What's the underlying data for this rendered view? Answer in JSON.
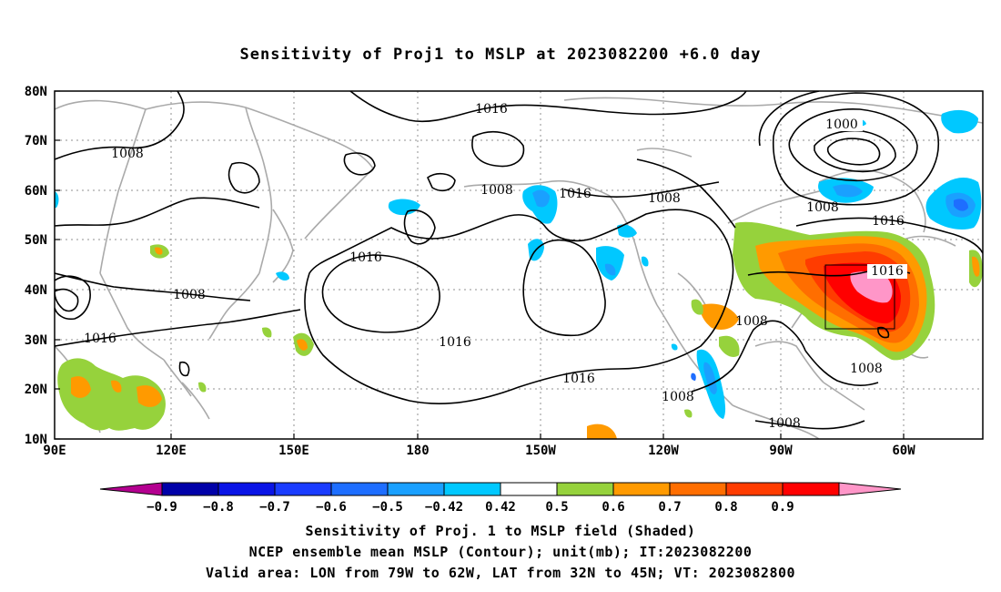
{
  "title": "Sensitivity of Proj1 to MSLP at 2023082200 +6.0 day",
  "map": {
    "lat_ticks": [
      "80N",
      "70N",
      "60N",
      "50N",
      "40N",
      "30N",
      "20N",
      "10N"
    ],
    "lon_ticks": [
      "90E",
      "120E",
      "150E",
      "180",
      "150W",
      "120W",
      "90W",
      "60W"
    ],
    "contour_labels": [
      {
        "text": "1016"
      },
      {
        "text": "1008"
      },
      {
        "text": "1000"
      },
      {
        "text": "1008"
      },
      {
        "text": "1016"
      },
      {
        "text": "1008"
      },
      {
        "text": "1016"
      },
      {
        "text": "1016"
      },
      {
        "text": "1008"
      },
      {
        "text": "1016"
      },
      {
        "text": "1016"
      },
      {
        "text": "1008"
      },
      {
        "text": "1016"
      },
      {
        "text": "1008"
      },
      {
        "text": "1008"
      },
      {
        "text": "1016"
      },
      {
        "text": "1008"
      },
      {
        "text": "1008"
      }
    ],
    "valid_box": {
      "lon_from": "79W",
      "lon_to": "62W",
      "lat_from": "32N",
      "lat_to": "45N"
    }
  },
  "colorbar": {
    "labels": [
      "-0.9",
      "-0.8",
      "-0.7",
      "-0.6",
      "-0.5",
      "-0.42",
      "0.42",
      "0.5",
      "0.6",
      "0.7",
      "0.8",
      "0.9"
    ],
    "colors": [
      "#b40090",
      "#0000a8",
      "#0a14e6",
      "#1a3cff",
      "#1e6eff",
      "#1aa0ff",
      "#00c8ff",
      "#ffffff",
      "#96d23c",
      "#ff9a00",
      "#ff6e00",
      "#ff3c00",
      "#ff0000",
      "#ff96c8"
    ]
  },
  "captions": {
    "line1": "Sensitivity of Proj. 1 to MSLP field (Shaded)",
    "line2": "NCEP ensemble mean MSLP (Contour); unit(mb); IT:2023082200",
    "line3": "Valid area: LON from 79W to 62W, LAT from 32N to 45N; VT: 2023082800"
  }
}
